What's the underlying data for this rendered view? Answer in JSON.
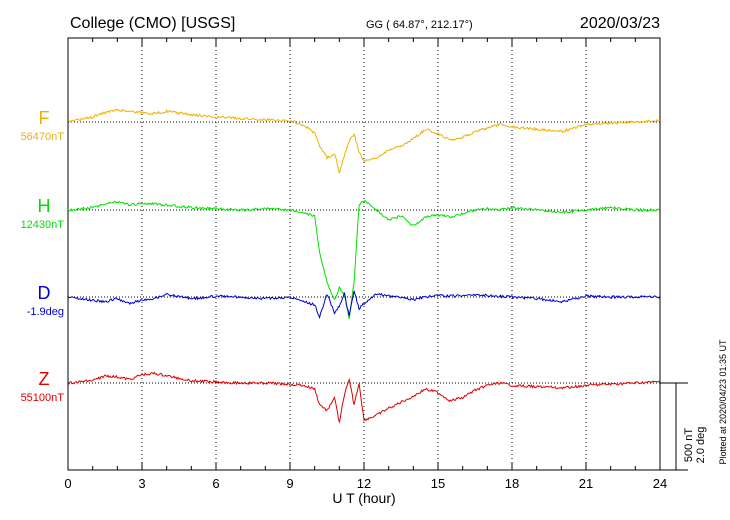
{
  "header": {
    "station": "College (CMO)  [USGS]",
    "coords": "GG ( 64.87°, 212.17°)",
    "date": "2020/03/23"
  },
  "side_note": "Plotted at 2020/04/23 01:35 UT",
  "scale_bar": {
    "line1": "500 nT",
    "line2": "2.0 deg"
  },
  "colors": {
    "F": "#f0b000",
    "H": "#00e000",
    "D": "#0000d0",
    "Z": "#e00000"
  },
  "chart_data": {
    "type": "line",
    "xlabel": "U T (hour)",
    "xlim": [
      0,
      24
    ],
    "xticks": [
      "0",
      "3",
      "6",
      "9",
      "12",
      "15",
      "18",
      "21",
      "24"
    ],
    "grid": true,
    "scale": "500 nT / 2.0 deg per bar",
    "series": [
      {
        "name": "F",
        "baseline_label": "56470nT",
        "x": [
          0,
          1,
          1.5,
          2,
          2.5,
          3,
          3.5,
          4,
          5,
          6,
          7,
          8,
          9,
          9.5,
          10,
          10.2,
          10.5,
          10.8,
          11,
          11.2,
          11.4,
          11.6,
          11.8,
          12,
          12.5,
          13,
          13.5,
          14,
          14.5,
          15,
          15.5,
          16,
          16.5,
          17,
          17.5,
          18,
          19,
          20,
          21,
          22,
          23,
          24
        ],
        "values": [
          0,
          40,
          80,
          100,
          90,
          80,
          70,
          90,
          60,
          40,
          30,
          20,
          10,
          -20,
          -90,
          -200,
          -300,
          -260,
          -420,
          -280,
          -160,
          -100,
          -250,
          -330,
          -300,
          -230,
          -200,
          -140,
          -60,
          -100,
          -150,
          -130,
          -80,
          -50,
          -20,
          -40,
          -60,
          -80,
          -20,
          -10,
          0,
          10
        ]
      },
      {
        "name": "H",
        "baseline_label": "12430nT",
        "x": [
          0,
          1,
          1.5,
          2,
          2.5,
          3,
          3.5,
          4,
          5,
          6,
          7,
          8,
          9,
          9.5,
          10,
          10.2,
          10.5,
          10.8,
          11,
          11.2,
          11.4,
          11.6,
          11.8,
          12,
          12.5,
          13,
          13.5,
          14,
          14.5,
          15,
          15.5,
          16,
          16.5,
          17,
          17.5,
          18,
          19,
          20,
          21,
          22,
          23,
          24
        ],
        "values": [
          0,
          20,
          50,
          70,
          40,
          60,
          50,
          40,
          20,
          10,
          0,
          10,
          0,
          -20,
          -50,
          -350,
          -600,
          -750,
          -650,
          -700,
          -900,
          -600,
          50,
          80,
          0,
          -80,
          -50,
          -130,
          -60,
          -40,
          -60,
          -30,
          0,
          10,
          0,
          20,
          0,
          -20,
          0,
          20,
          0,
          0
        ]
      },
      {
        "name": "D",
        "baseline_label": "-1.9deg",
        "x": [
          0,
          1,
          1.5,
          2,
          2.5,
          3,
          3.5,
          4,
          5,
          6,
          7,
          8,
          9,
          9.5,
          10,
          10.2,
          10.5,
          10.8,
          11,
          11.2,
          11.4,
          11.6,
          11.8,
          12,
          12.5,
          13,
          13.5,
          14,
          14.5,
          15,
          15.5,
          16,
          16.5,
          17,
          17.5,
          18,
          19,
          20,
          21,
          22,
          23,
          24
        ],
        "values": [
          0,
          -0.4,
          -0.6,
          -0.2,
          -0.8,
          -0.4,
          -0.2,
          0.3,
          -0.2,
          0.1,
          0,
          -0.2,
          0,
          -0.5,
          -1.0,
          -2.5,
          0.4,
          -2.0,
          -1.2,
          0.5,
          -2.4,
          0.8,
          -1.5,
          -0.8,
          0.4,
          0.1,
          0,
          -0.3,
          0,
          0.2,
          0.1,
          0.2,
          0.3,
          0.2,
          0.1,
          0,
          -0.2,
          -0.6,
          0.1,
          0,
          0,
          0
        ]
      },
      {
        "name": "Z",
        "baseline_label": "55100nT",
        "x": [
          0,
          1,
          1.5,
          2,
          2.5,
          3,
          3.5,
          4,
          5,
          6,
          7,
          8,
          9,
          9.5,
          10,
          10.2,
          10.5,
          10.8,
          11,
          11.2,
          11.4,
          11.6,
          11.8,
          12,
          12.5,
          13,
          13.5,
          14,
          14.5,
          15,
          15.5,
          16,
          16.5,
          17,
          17.5,
          18,
          19,
          20,
          21,
          22,
          23,
          24
        ],
        "values": [
          0,
          20,
          60,
          50,
          30,
          70,
          80,
          60,
          20,
          10,
          0,
          0,
          -10,
          -20,
          -50,
          -180,
          -230,
          -120,
          -330,
          -100,
          20,
          -180,
          0,
          -310,
          -270,
          -210,
          -160,
          -110,
          -50,
          -80,
          -150,
          -120,
          -60,
          -20,
          0,
          -20,
          -30,
          -40,
          -20,
          -10,
          0,
          10
        ]
      }
    ]
  }
}
